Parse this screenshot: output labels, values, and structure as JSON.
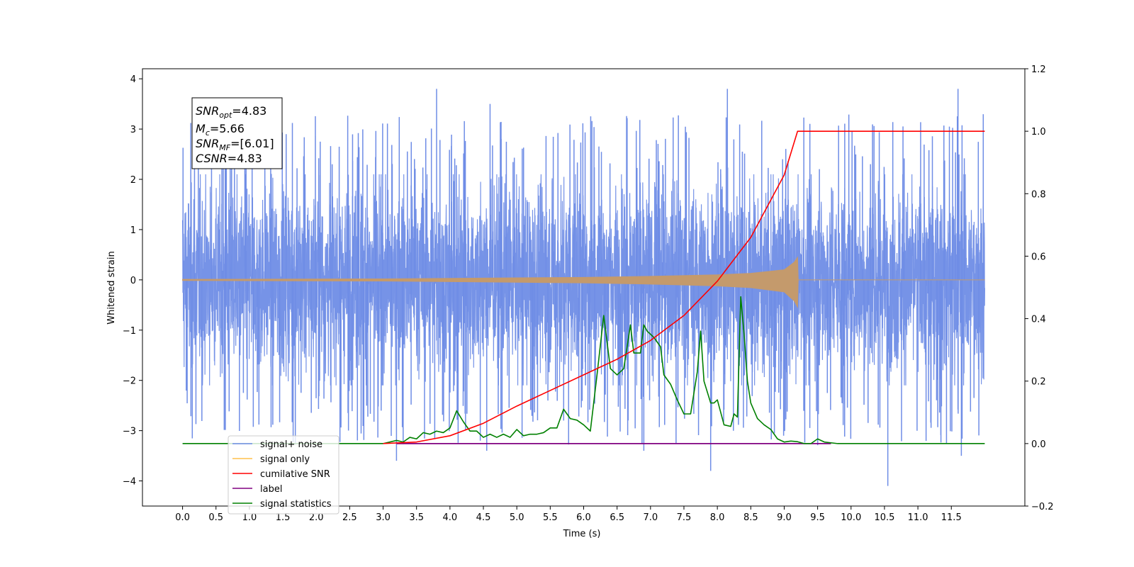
{
  "chart_data": {
    "type": "line",
    "xlabel": "Time (s)",
    "ylabel": "Whitened strain",
    "xlim": [
      -0.6,
      12.6
    ],
    "ylim_left": [
      -4.5,
      4.2
    ],
    "ylim_right": [
      -0.2,
      1.2
    ],
    "x_ticks": [
      "0.0",
      "0.5",
      "1.0",
      "1.5",
      "2.0",
      "2.5",
      "3.0",
      "3.5",
      "4.0",
      "4.5",
      "5.0",
      "5.5",
      "6.0",
      "6.5",
      "7.0",
      "7.5",
      "8.0",
      "8.5",
      "9.0",
      "9.5",
      "10.0",
      "10.5",
      "11.0",
      "11.5"
    ],
    "y_ticks_left": [
      "4",
      "3",
      "2",
      "1",
      "0",
      "−1",
      "−2",
      "−3",
      "−4"
    ],
    "y_ticks_right": [
      "1.2",
      "1.0",
      "0.8",
      "0.6",
      "0.4",
      "0.2",
      "0.0",
      "−0.2"
    ],
    "grid": false,
    "legend_position": "lower-left",
    "legend": [
      {
        "label": "signal+ noise",
        "color": "#6f8de6"
      },
      {
        "label": "signal only",
        "color": "#ffc04d"
      },
      {
        "label": "cumilative SNR",
        "color": "#ff0000"
      },
      {
        "label": "label",
        "color": "#800080"
      },
      {
        "label": "signal statistics",
        "color": "#008000"
      }
    ],
    "annotation": {
      "snr_opt": "=4.83",
      "mc": "=5.66",
      "snr_mf": "=[6.01]",
      "csnr": "=4.83"
    },
    "series": [
      {
        "name": "signal+ noise",
        "axis": "left",
        "color": "#6f8de6",
        "x_range": [
          0.0,
          12.0
        ],
        "envelope": [
          -2.0,
          2.0
        ],
        "notable_peaks": [
          [
            0.95,
            3.4
          ],
          [
            1.55,
            2.9
          ],
          [
            3.8,
            3.8
          ],
          [
            4.6,
            3.5
          ],
          [
            8.15,
            3.8
          ],
          [
            11.6,
            3.8
          ],
          [
            10.55,
            -4.1
          ],
          [
            7.9,
            -3.8
          ],
          [
            3.2,
            -3.6
          ],
          [
            4.55,
            -3.4
          ],
          [
            6.9,
            -3.4
          ],
          [
            11.65,
            -3.5
          ]
        ]
      },
      {
        "name": "signal only",
        "axis": "left",
        "color": "#c49a6c",
        "x_range": [
          0.0,
          12.0
        ],
        "amplitude_points": [
          [
            0.0,
            0.01
          ],
          [
            3.0,
            0.02
          ],
          [
            4.0,
            0.03
          ],
          [
            5.0,
            0.04
          ],
          [
            6.0,
            0.05
          ],
          [
            7.0,
            0.07
          ],
          [
            8.0,
            0.1
          ],
          [
            8.5,
            0.13
          ],
          [
            9.0,
            0.2
          ],
          [
            9.15,
            0.35
          ],
          [
            9.2,
            0.45
          ],
          [
            9.21,
            0.0
          ],
          [
            12.0,
            0.0
          ]
        ]
      },
      {
        "name": "cumilative SNR",
        "axis": "right",
        "color": "#ff0000",
        "x": [
          3.0,
          3.5,
          4.0,
          4.5,
          5.0,
          5.5,
          6.0,
          6.5,
          7.0,
          7.5,
          8.0,
          8.5,
          9.0,
          9.1,
          9.2,
          12.0
        ],
        "y": [
          0.0,
          0.005,
          0.025,
          0.065,
          0.12,
          0.17,
          0.22,
          0.27,
          0.33,
          0.41,
          0.52,
          0.66,
          0.86,
          0.93,
          1.0,
          1.0
        ]
      },
      {
        "name": "label",
        "axis": "right",
        "color": "#800080",
        "x": [
          3.2,
          9.7
        ],
        "y": [
          0.0,
          0.0
        ]
      },
      {
        "name": "signal statistics",
        "axis": "right",
        "color": "#008000",
        "x": [
          0.0,
          3.0,
          3.2,
          3.3,
          3.4,
          3.5,
          3.6,
          3.7,
          3.8,
          3.9,
          4.0,
          4.1,
          4.2,
          4.3,
          4.4,
          4.5,
          4.6,
          4.7,
          4.8,
          4.9,
          5.0,
          5.1,
          5.2,
          5.3,
          5.4,
          5.5,
          5.6,
          5.7,
          5.8,
          5.9,
          6.0,
          6.1,
          6.2,
          6.3,
          6.4,
          6.5,
          6.6,
          6.7,
          6.75,
          6.85,
          6.9,
          6.95,
          7.05,
          7.15,
          7.2,
          7.3,
          7.4,
          7.5,
          7.6,
          7.7,
          7.75,
          7.8,
          7.9,
          7.95,
          8.0,
          8.1,
          8.2,
          8.25,
          8.3,
          8.35,
          8.4,
          8.45,
          8.5,
          8.6,
          8.7,
          8.8,
          8.9,
          9.0,
          9.1,
          9.2,
          9.3,
          9.4,
          9.5,
          9.6,
          9.8,
          10.0,
          12.0
        ],
        "y": [
          0.0,
          0.0,
          0.01,
          0.005,
          0.02,
          0.015,
          0.035,
          0.03,
          0.04,
          0.035,
          0.05,
          0.105,
          0.07,
          0.04,
          0.04,
          0.02,
          0.03,
          0.02,
          0.03,
          0.02,
          0.045,
          0.025,
          0.03,
          0.03,
          0.035,
          0.05,
          0.05,
          0.11,
          0.08,
          0.075,
          0.06,
          0.04,
          0.22,
          0.41,
          0.24,
          0.22,
          0.24,
          0.38,
          0.29,
          0.29,
          0.38,
          0.36,
          0.34,
          0.31,
          0.22,
          0.19,
          0.14,
          0.095,
          0.095,
          0.23,
          0.36,
          0.2,
          0.13,
          0.13,
          0.14,
          0.06,
          0.055,
          0.095,
          0.085,
          0.47,
          0.35,
          0.2,
          0.13,
          0.08,
          0.06,
          0.045,
          0.015,
          0.005,
          0.008,
          0.006,
          0.0,
          0.0,
          0.015,
          0.005,
          0.0,
          0.0,
          0.0
        ]
      }
    ]
  }
}
